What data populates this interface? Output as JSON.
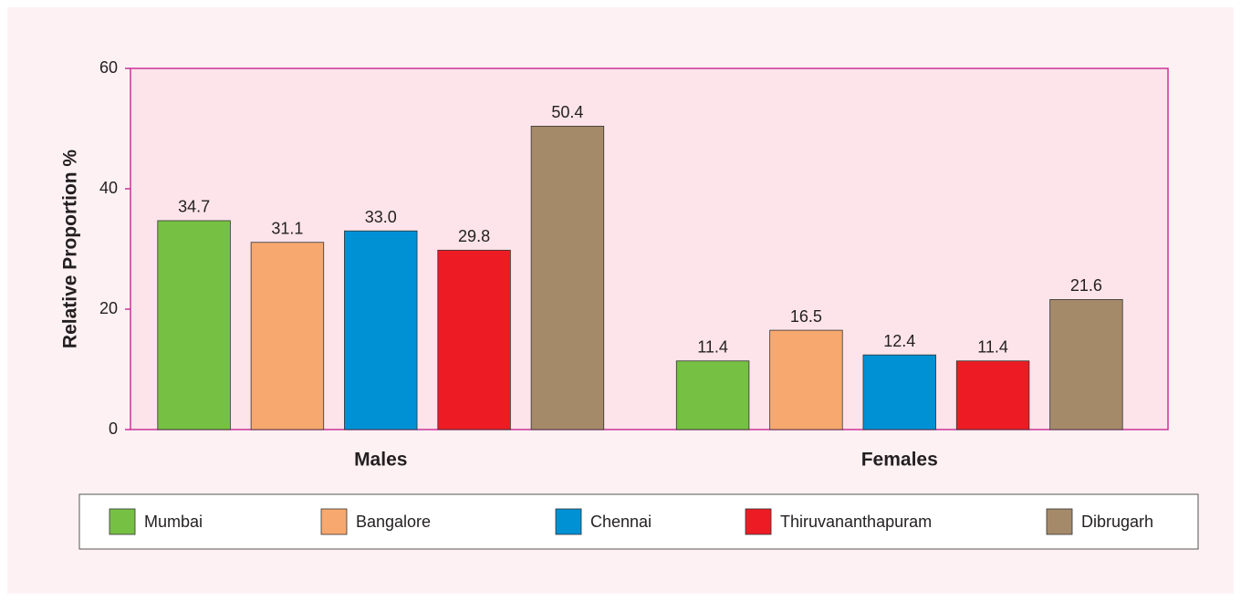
{
  "chart_data": {
    "type": "bar",
    "y_label": "Relative Proportion %",
    "categories": [
      "Males",
      "Females"
    ],
    "series": [
      {
        "name": "Mumbai",
        "color": "#76c043",
        "values": [
          34.7,
          11.4
        ],
        "value_labels": [
          "34.7",
          "11.4"
        ]
      },
      {
        "name": "Bangalore",
        "color": "#f7a86f",
        "values": [
          31.1,
          16.5
        ],
        "value_labels": [
          "31.1",
          "16.5"
        ]
      },
      {
        "name": "Chennai",
        "color": "#0091d5",
        "values": [
          33.0,
          12.4
        ],
        "value_labels": [
          "33.0",
          "12.4"
        ]
      },
      {
        "name": "Thiruvananthapuram",
        "color": "#ed1c24",
        "values": [
          29.8,
          11.4
        ],
        "value_labels": [
          "29.8",
          "11.4"
        ]
      },
      {
        "name": "Dibrugarh",
        "color": "#a58a6a",
        "values": [
          50.4,
          21.6
        ],
        "value_labels": [
          "50.4",
          "21.6"
        ]
      }
    ],
    "ylim": [
      0,
      60
    ],
    "yticks": [
      0,
      20,
      40,
      60
    ]
  }
}
